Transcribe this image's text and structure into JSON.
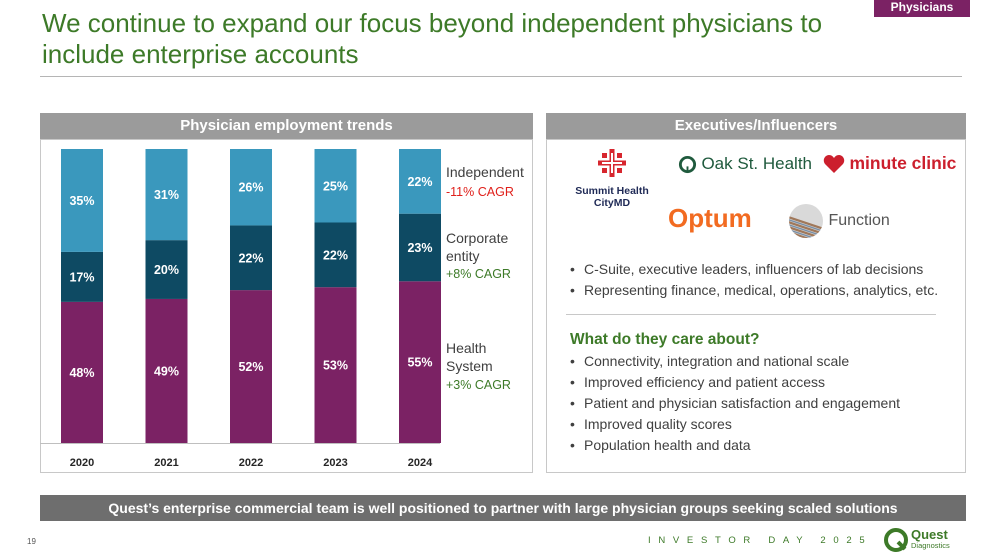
{
  "tag": "Physicians",
  "title": "We continue to expand our focus beyond independent physicians to include enterprise accounts",
  "chart_data": {
    "type": "bar",
    "stacked": true,
    "title": "Physician employment trends",
    "categories": [
      "2020",
      "2021",
      "2022",
      "2023",
      "2024"
    ],
    "series": [
      {
        "name": "Health System",
        "color": "#7b2264",
        "values": [
          48,
          49,
          52,
          53,
          55
        ],
        "labels": [
          "48%",
          "49%",
          "52%",
          "53%",
          "55%"
        ]
      },
      {
        "name": "Corporate entity",
        "color": "#0e4a63",
        "values": [
          17,
          20,
          22,
          22,
          23
        ],
        "labels": [
          "17%",
          "20%",
          "22%",
          "22%",
          "23%"
        ]
      },
      {
        "name": "Independent",
        "color": "#3a98bd",
        "values": [
          35,
          31,
          26,
          25,
          22
        ],
        "labels": [
          "35%",
          "31%",
          "26%",
          "25%",
          "22%"
        ]
      }
    ],
    "ylim": [
      0,
      100
    ],
    "xlabel": "",
    "ylabel": ""
  },
  "legend": {
    "independent": {
      "label": "Independent",
      "cagr": "-11% CAGR"
    },
    "corporate": {
      "label_line1": "Corporate",
      "label_line2": "entity",
      "cagr": "+8% CAGR"
    },
    "health": {
      "label_line1": "Health",
      "label_line2": "System",
      "cagr": "+3% CAGR"
    }
  },
  "colors": {
    "negative": "#e0201b",
    "positive": "#3d7a28",
    "brand_purple": "#7b2264",
    "brand_green": "#3d7a28"
  },
  "executives": {
    "header": "Executives/Influencers",
    "logos": {
      "summit_line1": "Summit Health",
      "summit_line2": "CityMD",
      "oak": "Oak St. Health",
      "minute": "minute clinic",
      "optum": "Optum",
      "function": "Function"
    },
    "bullets": [
      "C-Suite, executive leaders, influencers of lab decisions",
      "Representing finance, medical, operations, analytics, etc."
    ],
    "care_heading": "What do they care about?",
    "care_bullets": [
      "Connectivity, integration and national scale",
      "Improved efficiency and patient access",
      "Patient and physician satisfaction and engagement",
      "Improved quality scores",
      "Population health and data"
    ]
  },
  "footer": {
    "banner": "Quest’s enterprise commercial team is well positioned to partner with large physician groups seeking scaled solutions",
    "page_number": "19",
    "event": "INVESTOR DAY 2025",
    "brand_line1": "Quest",
    "brand_line2": "Diagnostics"
  }
}
